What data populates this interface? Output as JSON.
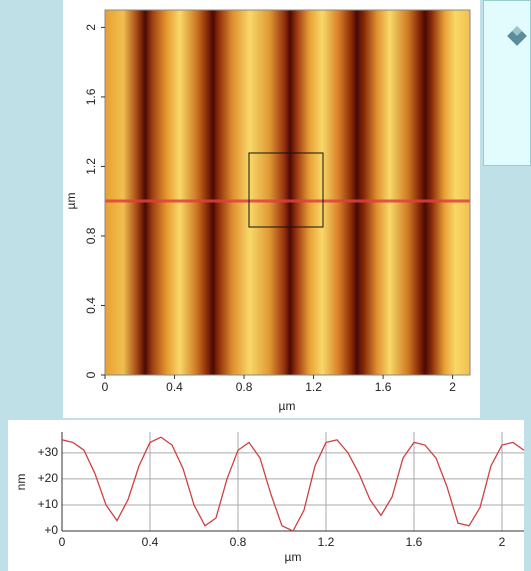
{
  "chart_data": [
    {
      "type": "image",
      "xlabel": "µm",
      "ylabel": "µm",
      "xlim": [
        0,
        2.1
      ],
      "ylim": [
        0,
        2.1
      ],
      "xticks": [
        0,
        0.4,
        0.8,
        1.2,
        1.6,
        2
      ],
      "yticks": [
        0,
        0.4,
        0.8,
        1.2,
        1.6,
        2
      ]
    },
    {
      "type": "line",
      "xlabel": "µm",
      "ylabel": "nm",
      "xlim": [
        0,
        2.1
      ],
      "ylim": [
        0,
        38
      ],
      "xticks": [
        0,
        0.4,
        0.8,
        1.2,
        1.6,
        2
      ],
      "yticks": [
        {
          "value": 0,
          "label": "+0"
        },
        {
          "value": 10,
          "label": "+10"
        },
        {
          "value": 20,
          "label": "+20"
        },
        {
          "value": 30,
          "label": "+30"
        }
      ],
      "grid": true,
      "color": "#d04040",
      "x": [
        0,
        0.05,
        0.1,
        0.15,
        0.2,
        0.25,
        0.3,
        0.35,
        0.4,
        0.45,
        0.5,
        0.55,
        0.6,
        0.65,
        0.7,
        0.75,
        0.8,
        0.85,
        0.9,
        0.95,
        1.0,
        1.05,
        1.1,
        1.15,
        1.2,
        1.25,
        1.3,
        1.35,
        1.4,
        1.45,
        1.5,
        1.55,
        1.6,
        1.65,
        1.7,
        1.75,
        1.8,
        1.85,
        1.9,
        1.95,
        2.0,
        2.05,
        2.1
      ],
      "values": [
        35,
        34,
        31,
        22,
        10,
        4,
        12,
        25,
        34,
        36,
        33,
        24,
        10,
        2,
        5,
        20,
        31,
        34,
        28,
        14,
        2,
        0,
        8,
        25,
        34,
        35,
        30,
        22,
        12,
        6,
        13,
        28,
        34,
        33,
        28,
        17,
        3,
        2,
        9,
        25,
        33,
        34,
        31
      ]
    }
  ]
}
